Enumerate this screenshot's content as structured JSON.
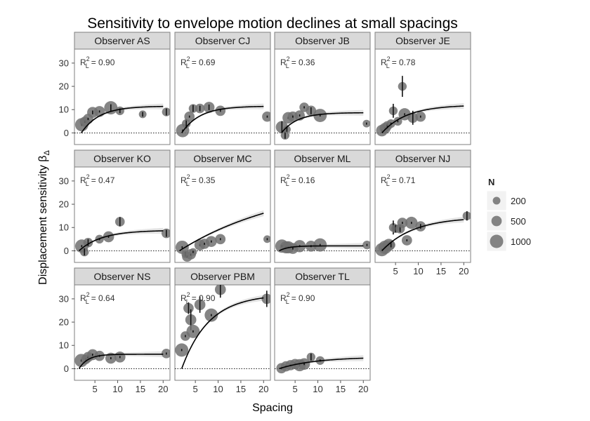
{
  "chart_data": {
    "type": "scatter",
    "title": "Sensitivity to envelope motion declines at small spacings",
    "xlabel": "Spacing",
    "ylabel": "Displacement sensitivity β",
    "ylabel_sub": "Δ",
    "xlim": [
      0.5,
      21.5
    ],
    "ylim": [
      -5,
      36
    ],
    "x_ticks": [
      5,
      10,
      15,
      20
    ],
    "y_ticks": [
      0,
      10,
      20,
      30
    ],
    "reference_line": 0,
    "r2_label": "R",
    "r2_sup": "2",
    "r2_sub": "L",
    "legend": {
      "title": "N",
      "entries": [
        {
          "label": "200",
          "value": 200
        },
        {
          "label": "500",
          "value": 500
        },
        {
          "label": "1000",
          "value": 1000
        }
      ]
    },
    "panels": [
      {
        "name": "Observer AS",
        "r2": "= 0.90",
        "fit": {
          "A": 11.5,
          "s0": 2.0,
          "k": 4.0
        },
        "points": [
          [
            2.1,
            3.5,
            1000,
            0
          ],
          [
            2.8,
            4.8,
            500,
            0
          ],
          [
            3.5,
            6,
            500,
            0.5
          ],
          [
            4.5,
            8.8,
            600,
            0.8
          ],
          [
            6,
            9.2,
            600,
            0
          ],
          [
            8.5,
            10.8,
            1000,
            1.5
          ],
          [
            10.5,
            9.5,
            300,
            1.0
          ],
          [
            15.5,
            8,
            200,
            1.0
          ],
          [
            20.7,
            9,
            300,
            1.5
          ]
        ]
      },
      {
        "name": "Observer CJ",
        "r2": "= 0.69",
        "fit": {
          "A": 11.5,
          "s0": 2.0,
          "k": 4.0
        },
        "points": [
          [
            2.2,
            1,
            1000,
            0
          ],
          [
            3,
            4,
            300,
            2
          ],
          [
            3.7,
            7,
            500,
            0
          ],
          [
            4.5,
            10.5,
            300,
            1.5
          ],
          [
            6,
            10.5,
            400,
            1.2
          ],
          [
            8,
            11,
            600,
            1.2
          ],
          [
            10.5,
            9.5,
            500,
            0
          ],
          [
            20.8,
            7,
            500,
            0
          ]
        ]
      },
      {
        "name": "Observer JB",
        "r2": "= 0.36",
        "fit": {
          "A": 8.7,
          "s0": 2.0,
          "k": 3.5
        },
        "points": [
          [
            2.1,
            2.5,
            800,
            2.5
          ],
          [
            2.8,
            -1,
            300,
            1.5
          ],
          [
            3.2,
            1.5,
            200,
            1
          ],
          [
            3.5,
            6.5,
            700,
            0
          ],
          [
            4.5,
            7,
            500,
            0
          ],
          [
            6,
            7.5,
            500,
            0
          ],
          [
            7,
            11,
            400,
            0
          ],
          [
            8.5,
            9.5,
            500,
            1.5
          ],
          [
            10.5,
            7.5,
            1000,
            0
          ],
          [
            20.7,
            4,
            200,
            0
          ]
        ]
      },
      {
        "name": "Observer JE",
        "r2": "= 0.78",
        "fit": {
          "A": 12.0,
          "s0": 2.0,
          "k": 5.5
        },
        "points": [
          [
            2,
            1,
            700,
            0
          ],
          [
            2.7,
            2,
            600,
            0
          ],
          [
            3.2,
            3,
            400,
            1
          ],
          [
            4,
            4,
            300,
            0
          ],
          [
            4.5,
            9.5,
            300,
            3
          ],
          [
            5.5,
            5,
            300,
            0
          ],
          [
            6.5,
            20,
            300,
            4.5
          ],
          [
            7,
            8,
            800,
            0
          ],
          [
            8.8,
            6.5,
            500,
            3
          ],
          [
            10.5,
            7,
            500,
            0
          ]
        ]
      },
      {
        "name": "Observer KO",
        "r2": "= 0.47",
        "fit": {
          "A": 8.8,
          "s0": 1.5,
          "k": 5.0
        },
        "points": [
          [
            2.1,
            2,
            1000,
            0
          ],
          [
            2.7,
            -0.5,
            300,
            1.5
          ],
          [
            3.5,
            3.5,
            400,
            1.5
          ],
          [
            6,
            5,
            300,
            0
          ],
          [
            8,
            6,
            600,
            0
          ],
          [
            10.5,
            12.5,
            400,
            2
          ],
          [
            20.7,
            7.5,
            400,
            1.5
          ]
        ]
      },
      {
        "name": "Observer MC",
        "r2": "= 0.35",
        "fit": {
          "A": 30.0,
          "s0": 1.5,
          "k": 24.0
        },
        "points": [
          [
            2.1,
            1.5,
            1000,
            0
          ],
          [
            2.8,
            -1.5,
            200,
            1
          ],
          [
            3.2,
            -2.5,
            500,
            0
          ],
          [
            4,
            -1.5,
            500,
            0
          ],
          [
            4.5,
            -0.5,
            200,
            0
          ],
          [
            6,
            2.5,
            600,
            0
          ],
          [
            7,
            3,
            500,
            0
          ],
          [
            8.5,
            4,
            600,
            0
          ],
          [
            10.5,
            5,
            500,
            0
          ],
          [
            20.8,
            5,
            200,
            0
          ]
        ]
      },
      {
        "name": "Observer ML",
        "r2": "= 0.16",
        "fit": {
          "A": 2.1,
          "s0": 1.5,
          "k": 2.0
        },
        "points": [
          [
            2.1,
            2,
            1000,
            0
          ],
          [
            3,
            1.5,
            800,
            0
          ],
          [
            3.5,
            1.5,
            800,
            0
          ],
          [
            4.5,
            1,
            600,
            0
          ],
          [
            6,
            2,
            800,
            0
          ],
          [
            8.5,
            2,
            600,
            0
          ],
          [
            10.5,
            2.5,
            1000,
            0
          ],
          [
            20.8,
            2.5,
            300,
            0
          ]
        ]
      },
      {
        "name": "Observer NJ",
        "r2": "= 0.71",
        "fit": {
          "A": 14.5,
          "s0": 2.0,
          "k": 7.0
        },
        "points": [
          [
            2,
            0.5,
            1000,
            0
          ],
          [
            2.7,
            1.5,
            1000,
            0
          ],
          [
            3.5,
            2.5,
            800,
            0
          ],
          [
            4,
            2.5,
            300,
            1
          ],
          [
            4.5,
            10,
            300,
            3
          ],
          [
            5,
            9.5,
            300,
            1.5
          ],
          [
            6,
            9.5,
            400,
            1.5
          ],
          [
            6.5,
            12,
            500,
            0
          ],
          [
            7.5,
            4.5,
            500,
            0
          ],
          [
            8.5,
            12,
            800,
            0
          ],
          [
            10.5,
            10.5,
            500,
            1
          ],
          [
            20.7,
            15,
            300,
            2
          ]
        ]
      },
      {
        "name": "Observer NS",
        "r2": "= 0.64",
        "fit": {
          "A": 6.2,
          "s0": 1.5,
          "k": 2.0
        },
        "points": [
          [
            2,
            3.5,
            1000,
            0
          ],
          [
            3,
            4,
            400,
            0
          ],
          [
            3.5,
            5,
            500,
            0
          ],
          [
            4.5,
            6,
            600,
            0
          ],
          [
            6,
            5.5,
            500,
            0
          ],
          [
            8.5,
            4.5,
            600,
            0
          ],
          [
            10.5,
            5,
            600,
            0
          ],
          [
            20.7,
            6.5,
            400,
            0
          ]
        ]
      },
      {
        "name": "Observer PBM",
        "r2": "= 0.90",
        "fit": {
          "A": 32.0,
          "s0": 2.0,
          "k": 6.0
        },
        "points": [
          [
            2,
            8,
            1000,
            0
          ],
          [
            2.8,
            14,
            400,
            0
          ],
          [
            3.5,
            26,
            500,
            2.5
          ],
          [
            4,
            21,
            600,
            4.5
          ],
          [
            4.5,
            16,
            1000,
            0
          ],
          [
            6,
            27.5,
            600,
            3.5
          ],
          [
            8.5,
            23,
            1000,
            0
          ],
          [
            10.5,
            34,
            600,
            3.5
          ],
          [
            20.7,
            30,
            500,
            3.5
          ]
        ]
      },
      {
        "name": "Observer TL",
        "r2": "= 0.90",
        "fit": {
          "A": 5.0,
          "s0": 1.5,
          "k": 8.0
        },
        "points": [
          [
            2,
            0.2,
            500,
            0
          ],
          [
            3,
            1,
            500,
            0
          ],
          [
            4,
            1.5,
            500,
            0
          ],
          [
            5,
            2,
            500,
            0
          ],
          [
            6,
            1.5,
            800,
            0
          ],
          [
            7,
            2,
            700,
            0
          ],
          [
            8.5,
            5,
            300,
            1.5
          ],
          [
            10.5,
            3.5,
            300,
            0
          ]
        ]
      }
    ]
  }
}
